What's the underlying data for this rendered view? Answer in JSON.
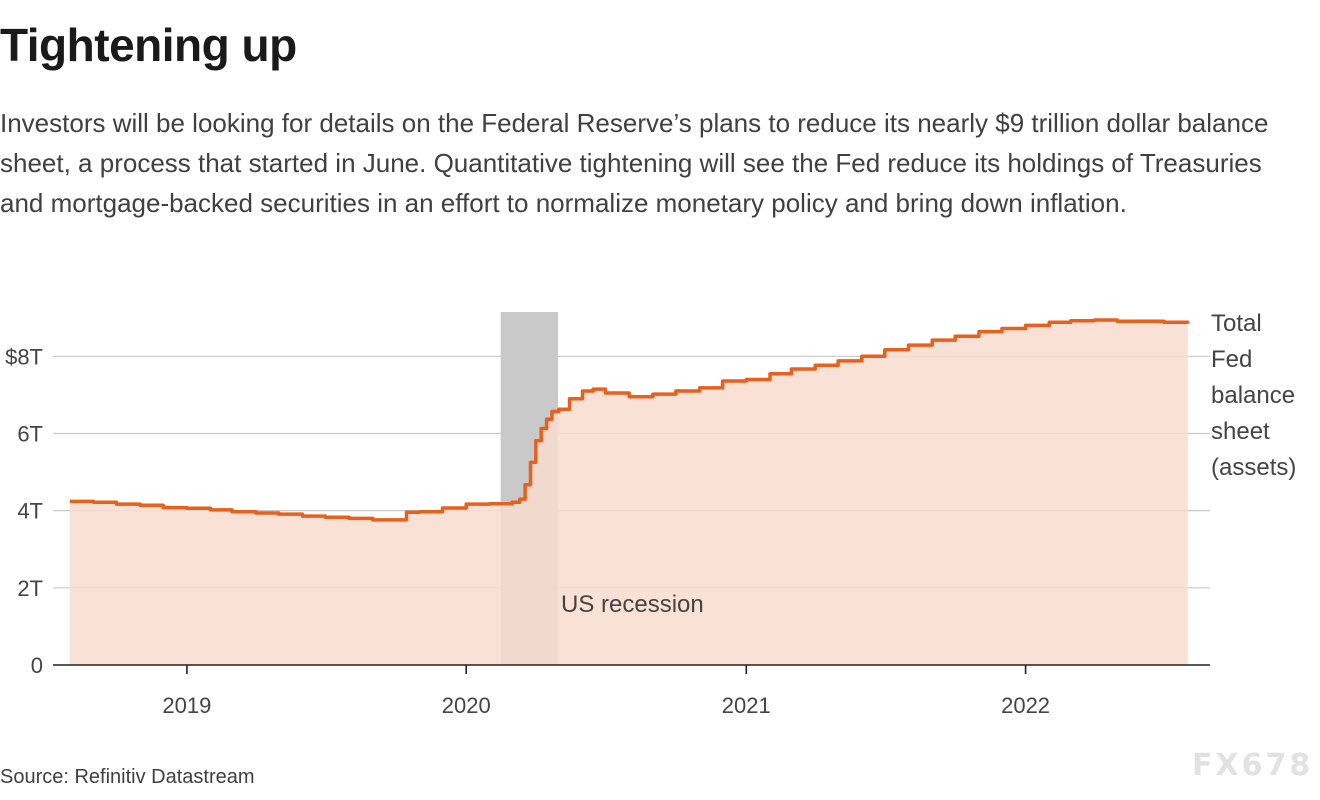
{
  "title": "Tightening up",
  "subtitle": "Investors will be looking for details on the Federal Reserve’s plans to reduce its nearly $9 trillion dollar balance sheet, a process that started in June. Quantitative tightening will see the Fed reduce its holdings of Treasuries and mortgage-backed securities in an effort to normalize monetary policy and bring down inflation.",
  "source": "Source: Refinitiv Datastream",
  "watermark": "FX678",
  "chart_data": {
    "type": "area",
    "series": [
      {
        "name": "Total Fed balance sheet (assets)",
        "color": "#e8601c",
        "fill": "#f9dccf",
        "points": [
          [
            "2018-08-01",
            4.24
          ],
          [
            "2018-09-01",
            4.22
          ],
          [
            "2018-10-01",
            4.17
          ],
          [
            "2018-11-01",
            4.14
          ],
          [
            "2018-12-01",
            4.08
          ],
          [
            "2019-01-01",
            4.06
          ],
          [
            "2019-02-01",
            4.02
          ],
          [
            "2019-03-01",
            3.97
          ],
          [
            "2019-04-01",
            3.94
          ],
          [
            "2019-05-01",
            3.91
          ],
          [
            "2019-06-01",
            3.86
          ],
          [
            "2019-07-01",
            3.83
          ],
          [
            "2019-08-01",
            3.8
          ],
          [
            "2019-09-01",
            3.76
          ],
          [
            "2019-10-01",
            3.76
          ],
          [
            "2019-10-15",
            3.96
          ],
          [
            "2019-11-01",
            3.97
          ],
          [
            "2019-12-01",
            4.07
          ],
          [
            "2020-01-01",
            4.17
          ],
          [
            "2020-02-01",
            4.18
          ],
          [
            "2020-03-01",
            4.22
          ],
          [
            "2020-03-11",
            4.3
          ],
          [
            "2020-03-18",
            4.67
          ],
          [
            "2020-03-25",
            5.25
          ],
          [
            "2020-04-01",
            5.81
          ],
          [
            "2020-04-08",
            6.13
          ],
          [
            "2020-04-15",
            6.37
          ],
          [
            "2020-04-22",
            6.57
          ],
          [
            "2020-05-01",
            6.63
          ],
          [
            "2020-05-15",
            6.9
          ],
          [
            "2020-06-01",
            7.1
          ],
          [
            "2020-06-15",
            7.15
          ],
          [
            "2020-07-01",
            7.05
          ],
          [
            "2020-08-01",
            6.95
          ],
          [
            "2020-09-01",
            7.02
          ],
          [
            "2020-10-01",
            7.1
          ],
          [
            "2020-11-01",
            7.18
          ],
          [
            "2020-12-01",
            7.36
          ],
          [
            "2021-01-01",
            7.4
          ],
          [
            "2021-02-01",
            7.55
          ],
          [
            "2021-03-01",
            7.67
          ],
          [
            "2021-04-01",
            7.77
          ],
          [
            "2021-05-01",
            7.88
          ],
          [
            "2021-06-01",
            8.0
          ],
          [
            "2021-07-01",
            8.17
          ],
          [
            "2021-08-01",
            8.29
          ],
          [
            "2021-09-01",
            8.42
          ],
          [
            "2021-10-01",
            8.52
          ],
          [
            "2021-11-01",
            8.64
          ],
          [
            "2021-12-01",
            8.72
          ],
          [
            "2022-01-01",
            8.8
          ],
          [
            "2022-02-01",
            8.88
          ],
          [
            "2022-03-01",
            8.92
          ],
          [
            "2022-04-01",
            8.94
          ],
          [
            "2022-05-01",
            8.91
          ],
          [
            "2022-06-01",
            8.91
          ],
          [
            "2022-07-01",
            8.88
          ],
          [
            "2022-08-01",
            8.85
          ]
        ]
      }
    ],
    "series_label": [
      "Total",
      "Fed",
      "balance",
      "sheet",
      "(assets)"
    ],
    "shaded_region": {
      "start": "2020-02-15",
      "end": "2020-04-30",
      "label": "US recession",
      "color": "#c9c9c9"
    },
    "x": {
      "type": "time",
      "range": [
        "2018-07-10",
        "2022-08-30"
      ],
      "ticks": [
        "2019",
        "2020",
        "2021",
        "2022"
      ]
    },
    "y": {
      "range": [
        0,
        9.2
      ],
      "ticks": [
        0,
        2,
        4,
        6,
        8
      ],
      "tick_labels": [
        "0",
        "2T",
        "4T",
        "6T",
        "$8T"
      ]
    },
    "grid": "horizontal",
    "xlabel": "",
    "ylabel": ""
  }
}
